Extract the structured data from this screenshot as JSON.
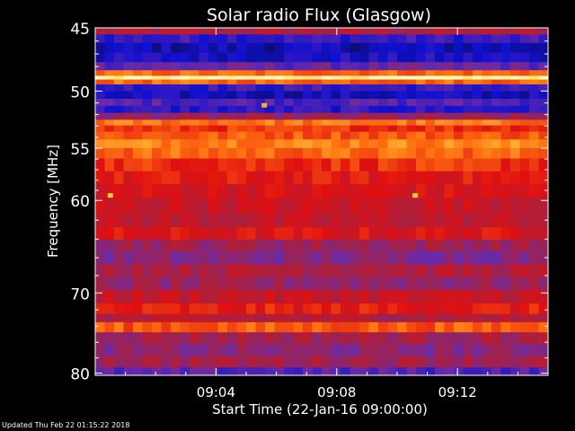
{
  "chart_data": {
    "type": "heatmap",
    "title": "Solar radio Flux (Glasgow)",
    "xlabel": "Start Time (22-Jan-16 09:00:00)",
    "ylabel": "Frequency [MHz]",
    "x_unit": "minutes after 09:00:00",
    "xlim": [
      0,
      15
    ],
    "x_ticks": [
      {
        "value": 4,
        "label": "09:04"
      },
      {
        "value": 8,
        "label": "09:08"
      },
      {
        "value": 12,
        "label": "09:12"
      }
    ],
    "ylim": [
      45,
      80.3
    ],
    "y_scale": "log",
    "y_ticks": [
      {
        "value": 45,
        "label": "45"
      },
      {
        "value": 50,
        "label": "50"
      },
      {
        "value": 55,
        "label": "55"
      },
      {
        "value": 60,
        "label": "60"
      },
      {
        "value": 70,
        "label": "70"
      },
      {
        "value": 80,
        "label": "80"
      }
    ],
    "colormap": [
      "#0b0b3a",
      "#1010d0",
      "#6a2aa8",
      "#a82040",
      "#e01010",
      "#ff7010",
      "#ffd040",
      "#ffffc0"
    ],
    "spectral_bands": [
      {
        "freq": 45.2,
        "level": 0.45
      },
      {
        "freq": 45.8,
        "level": 0.2
      },
      {
        "freq": 46.5,
        "level": 0.12
      },
      {
        "freq": 47.3,
        "level": 0.15
      },
      {
        "freq": 48.0,
        "level": 0.28
      },
      {
        "freq": 48.6,
        "level": 0.7
      },
      {
        "freq": 48.9,
        "level": 0.97
      },
      {
        "freq": 49.2,
        "level": 0.7
      },
      {
        "freq": 49.7,
        "level": 0.2
      },
      {
        "freq": 50.3,
        "level": 0.13
      },
      {
        "freq": 51.0,
        "level": 0.25
      },
      {
        "freq": 51.5,
        "level": 0.18
      },
      {
        "freq": 52.2,
        "level": 0.38
      },
      {
        "freq": 52.7,
        "level": 0.72
      },
      {
        "freq": 53.2,
        "level": 0.62
      },
      {
        "freq": 53.8,
        "level": 0.68
      },
      {
        "freq": 54.6,
        "level": 0.75
      },
      {
        "freq": 55.4,
        "level": 0.7
      },
      {
        "freq": 56.5,
        "level": 0.62
      },
      {
        "freq": 57.8,
        "level": 0.57
      },
      {
        "freq": 59.0,
        "level": 0.54
      },
      {
        "freq": 60.5,
        "level": 0.51
      },
      {
        "freq": 62.0,
        "level": 0.48
      },
      {
        "freq": 63.5,
        "level": 0.55
      },
      {
        "freq": 64.6,
        "level": 0.4
      },
      {
        "freq": 66.0,
        "level": 0.34
      },
      {
        "freq": 67.5,
        "level": 0.45
      },
      {
        "freq": 68.8,
        "level": 0.38
      },
      {
        "freq": 70.5,
        "level": 0.5
      },
      {
        "freq": 72.0,
        "level": 0.58
      },
      {
        "freq": 73.0,
        "level": 0.45
      },
      {
        "freq": 74.0,
        "level": 0.68
      },
      {
        "freq": 75.5,
        "level": 0.42
      },
      {
        "freq": 77.0,
        "level": 0.35
      },
      {
        "freq": 78.5,
        "level": 0.42
      },
      {
        "freq": 80.0,
        "level": 0.25
      }
    ],
    "bursts": [
      {
        "time": 0.5,
        "freq": 59.5,
        "level": 0.85
      },
      {
        "time": 5.6,
        "freq": 51.2,
        "level": 0.8
      },
      {
        "time": 10.6,
        "freq": 59.5,
        "level": 0.85
      }
    ]
  },
  "footer": {
    "updated": "Updated Thu Feb 22 01:15:22 2018"
  }
}
